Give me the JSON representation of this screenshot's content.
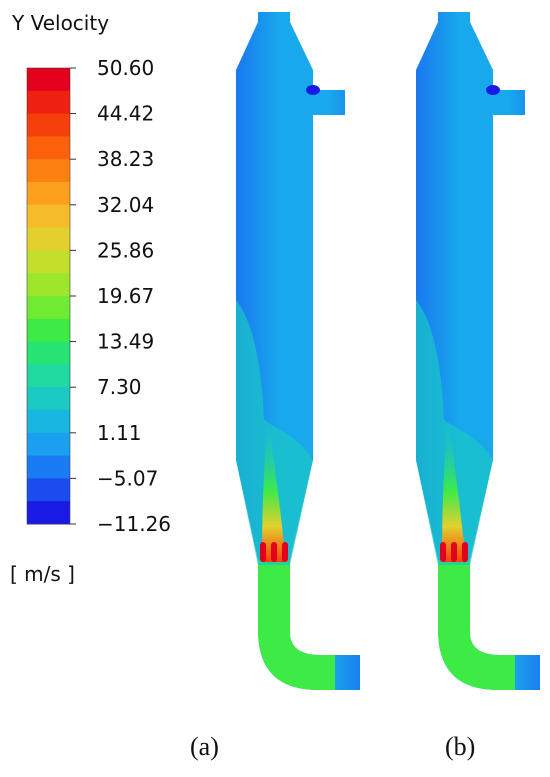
{
  "colorbar": {
    "title": "Y Velocity",
    "unit": "[ m/s ]",
    "ticks": [
      {
        "value": 50.6,
        "label": "50.60"
      },
      44.42,
      38.23,
      32.04,
      25.86,
      19.67,
      13.49,
      {
        "value": 7.3,
        "label": "7.30"
      },
      1.11,
      {
        "value": -5.07,
        "label": "−5.07"
      },
      {
        "value": -11.26,
        "label": "−11.26"
      }
    ],
    "colors": [
      "#e3001c",
      "#ed2012",
      "#f5400c",
      "#fb600a",
      "#fd8012",
      "#fda01e",
      "#f5bb28",
      "#e2d02e",
      "#c4de2c",
      "#9ee62c",
      "#70ea32",
      "#3eea46",
      "#26e474",
      "#1edaa0",
      "#1ac8c4",
      "#18b6e0",
      "#1aa0ee",
      "#1a7cf2",
      "#1a4cf0",
      "#1a1ae6"
    ]
  },
  "panels": [
    {
      "label": "(a)"
    },
    {
      "label": "(b)"
    }
  ]
}
